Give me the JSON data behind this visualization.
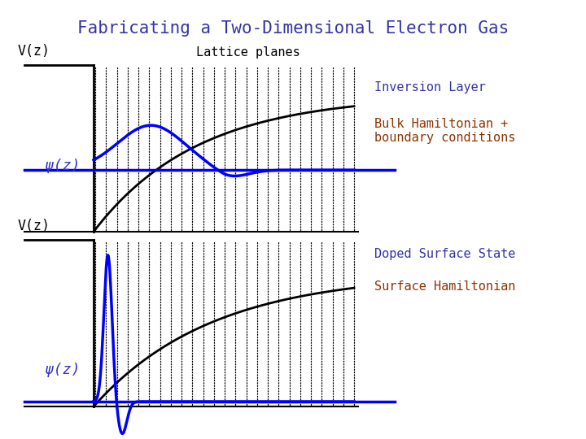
{
  "title": "Fabricating a Two-Dimensional Electron Gas",
  "title_color": "#3333aa",
  "title_fontsize": 15,
  "bg_color": "#ffffff",
  "panel1": {
    "label_V": "V(z)",
    "label_psi": "ψ(z)",
    "label_lattice": "Lattice planes",
    "label_inversion": "Inversion Layer",
    "label_bulk": "Bulk Hamiltonian +\nboundary conditions",
    "label_inversion_color": "#3333aa",
    "label_bulk_color": "#8b3300"
  },
  "panel2": {
    "label_V": "V(z)",
    "label_psi": "ψ(z)",
    "label_doped": "Doped Surface State",
    "label_hamiltonian": "Surface Hamiltonian",
    "label_doped_color": "#3333aa",
    "label_hamiltonian_color": "#8b3300"
  }
}
